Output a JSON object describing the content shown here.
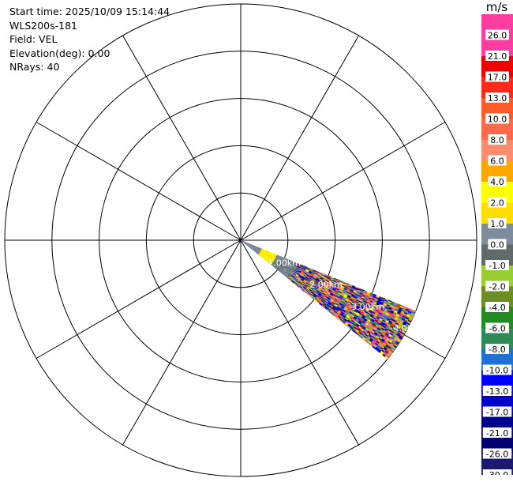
{
  "header": {
    "start_time": "Start time: 2025/10/09 15:14:44",
    "instrument": "WLS200s-181",
    "field": "Field: VEL",
    "elevation": "Elevation(deg): 0.00",
    "nrays": "NRays: 40"
  },
  "colorbar": {
    "unit": "m/s",
    "bins": [
      {
        "color": "#ff3ca0",
        "label": "26.0"
      },
      {
        "color": "#ff3ca0",
        "label": "21.0"
      },
      {
        "color": "#ee0000",
        "label": "17.0"
      },
      {
        "color": "#ff2a1a",
        "label": "13.0"
      },
      {
        "color": "#ff5a2c",
        "label": "10.0"
      },
      {
        "color": "#ff6b4a",
        "label": "8.0"
      },
      {
        "color": "#ff8c6e",
        "label": "6.0"
      },
      {
        "color": "#ffa500",
        "label": "4.0"
      },
      {
        "color": "#ffff00",
        "label": "2.0"
      },
      {
        "color": "#ffdd00",
        "label": "1.0"
      },
      {
        "color": "#7c8c9a",
        "label": "0.0"
      },
      {
        "color": "#5f6a6a",
        "label": "-1.0"
      },
      {
        "color": "#9acd32",
        "label": "-2.0"
      },
      {
        "color": "#6b8e23",
        "label": "-4.0"
      },
      {
        "color": "#228b22",
        "label": "-6.0"
      },
      {
        "color": "#2e8b57",
        "label": "-8.0"
      },
      {
        "color": "#1e73d2",
        "label": "-10.0"
      },
      {
        "color": "#0000ff",
        "label": "-13.0"
      },
      {
        "color": "#0000cd",
        "label": "-17.0"
      },
      {
        "color": "#00008b",
        "label": "-21.0"
      },
      {
        "color": "#000070",
        "label": "-26.0"
      },
      {
        "color": "#191970",
        "label": "-30.0"
      }
    ]
  },
  "chart_data": {
    "type": "polar-ppi",
    "field": "VEL",
    "units": "m/s",
    "nrays": 40,
    "elevation_deg": 0.0,
    "range_rings_km": [
      1,
      2,
      3,
      4,
      5
    ],
    "range_ring_labels": [
      "1.00km",
      "2.00km",
      "3.00km",
      "4.00km"
    ],
    "spoke_azimuths_deg": [
      0,
      30,
      60,
      90,
      120,
      150,
      180,
      210,
      240,
      270,
      300,
      330
    ],
    "sector": {
      "az_start_deg": 112,
      "az_end_deg": 129,
      "max_range_km": 4.0
    },
    "segments": [
      {
        "range_km": [
          0.0,
          0.5
        ],
        "dominant": [
          "0.0"
        ]
      },
      {
        "range_km": [
          0.5,
          0.85
        ],
        "dominant": [
          "1.0",
          "2.0"
        ]
      },
      {
        "range_km": [
          0.85,
          1.3
        ],
        "dominant": [
          "-1.0",
          "0.0"
        ]
      },
      {
        "range_km": [
          1.3,
          4.0
        ],
        "dominant": "mixed"
      }
    ],
    "noise_palette": [
      "#ff3ca0",
      "#0000ff",
      "#00008b",
      "#ff2a1a",
      "#1e73d2",
      "#ff6b4a",
      "#191970",
      "#0000cd",
      "#ffa500",
      "#228b22",
      "#9acd32",
      "#ffff00",
      "#7c8c9a",
      "#ff8c6e"
    ]
  }
}
